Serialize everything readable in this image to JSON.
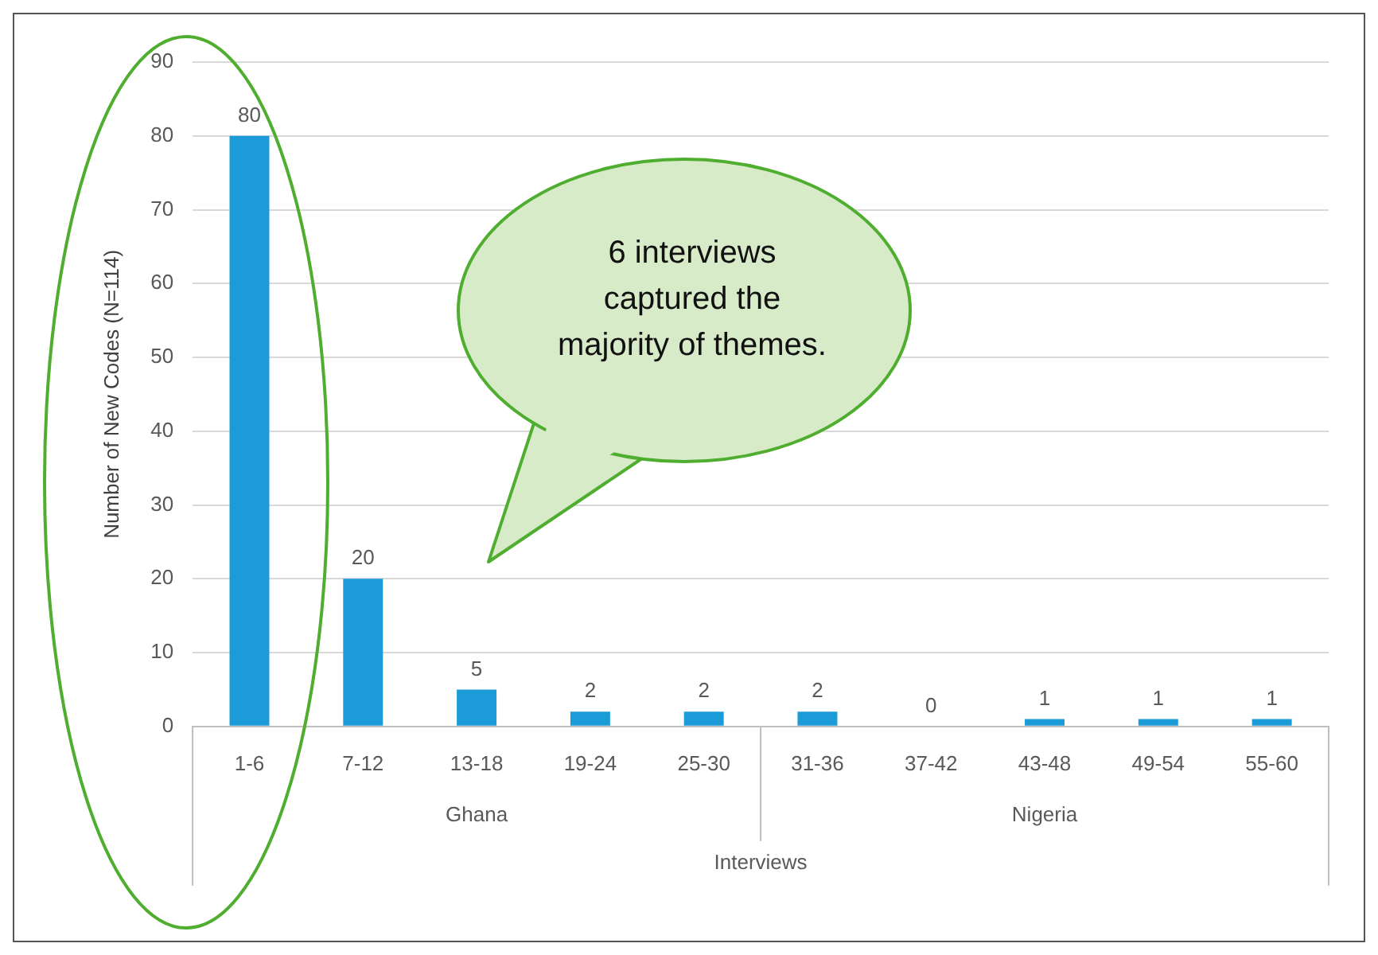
{
  "chart_data": {
    "type": "bar",
    "ylabel": "Number of New Codes (N=114)",
    "xlabel": "Interviews",
    "categories": [
      "1-6",
      "7-12",
      "13-18",
      "19-24",
      "25-30",
      "31-36",
      "37-42",
      "43-48",
      "49-54",
      "55-60"
    ],
    "values": [
      80,
      20,
      5,
      2,
      2,
      2,
      0,
      1,
      1,
      1
    ],
    "color": "#1b9bd7",
    "ylim": [
      0,
      90
    ],
    "yticks": [
      0,
      10,
      20,
      30,
      40,
      50,
      60,
      70,
      80,
      90
    ],
    "grid": "y",
    "data_labels": true,
    "annotations": [
      "Ghana",
      "Nigeria",
      "6 interviews captured the majority of themes."
    ]
  }
}
